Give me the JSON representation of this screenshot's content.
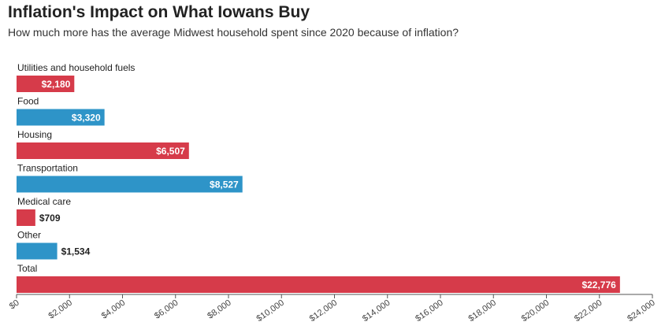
{
  "chart_data": {
    "type": "bar",
    "orientation": "horizontal",
    "title": "Inflation's Impact on What Iowans Buy",
    "subtitle": "How much more has the average Midwest household spent since 2020 because of inflation?",
    "categories": [
      "Utilities and household fuels",
      "Food",
      "Housing",
      "Transportation",
      "Medical care",
      "Other",
      "Total"
    ],
    "values": [
      2180,
      3320,
      6507,
      8527,
      709,
      1534,
      22776
    ],
    "value_labels": [
      "$2,180",
      "$3,320",
      "$6,507",
      "$8,527",
      "$709",
      "$1,534",
      "$22,776"
    ],
    "bar_colors": [
      "#d63b4a",
      "#2e94c8",
      "#d63b4a",
      "#2e94c8",
      "#d63b4a",
      "#2e94c8",
      "#d63b4a"
    ],
    "xlim": [
      0,
      24000
    ],
    "x_ticks": [
      0,
      2000,
      4000,
      6000,
      8000,
      10000,
      12000,
      14000,
      16000,
      18000,
      20000,
      22000,
      24000
    ],
    "x_tick_labels": [
      "$0",
      "$2,000",
      "$4,000",
      "$6,000",
      "$8,000",
      "$10,000",
      "$12,000",
      "$14,000",
      "$16,000",
      "$18,000",
      "$20,000",
      "$22,000",
      "$24,000"
    ],
    "xlabel": "",
    "ylabel": "",
    "grid": false,
    "legend": false
  }
}
